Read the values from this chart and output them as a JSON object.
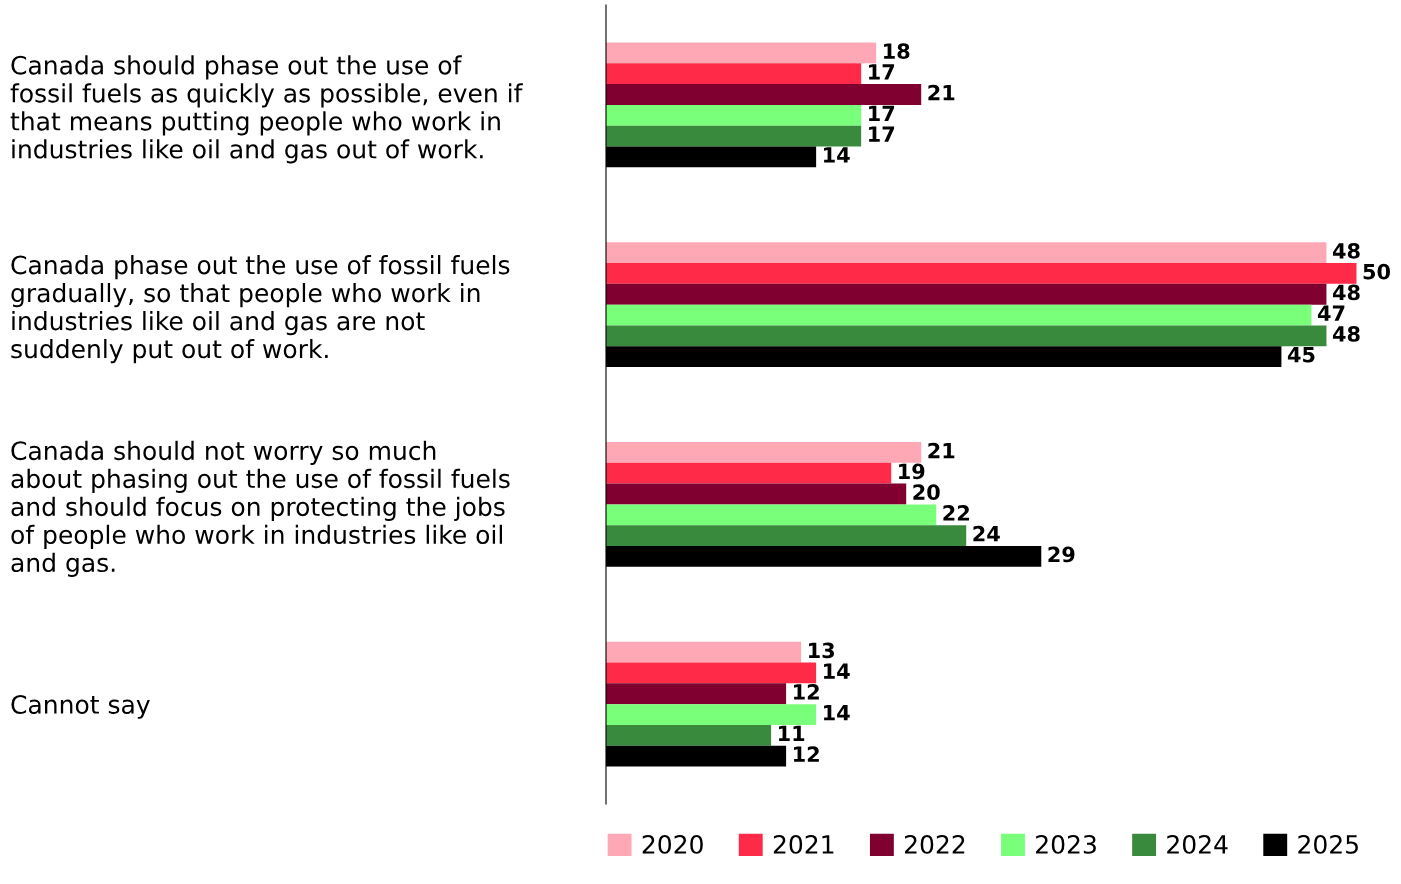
{
  "chart_data": {
    "type": "bar",
    "orientation": "horizontal",
    "data_labels": true,
    "legend": "bottom",
    "grid": false,
    "tick_labels": "y",
    "categories": [
      "Canada should phase out the use of\nfossil fuels as quickly as possible, even if\nthat means putting people who work in\nindustries like oil and gas out of work.",
      "Canada phase out the use of fossil fuels\ngradually, so that people who work in\nindustries like oil and gas are not\nsuddenly put out of work.",
      "Canada should not worry so much\nabout phasing out the use of fossil fuels\nand should focus on protecting the jobs\nof people who work in industries like oil\nand gas.",
      "Cannot say"
    ],
    "series": [
      {
        "name": "2020",
        "color": "#ffa8b5",
        "values": [
          18,
          48,
          21,
          13
        ]
      },
      {
        "name": "2021",
        "color": "#ff2a47",
        "values": [
          17,
          50,
          19,
          14
        ]
      },
      {
        "name": "2022",
        "color": "#800030",
        "values": [
          21,
          48,
          20,
          12
        ]
      },
      {
        "name": "2023",
        "color": "#7aff7a",
        "values": [
          17,
          47,
          22,
          14
        ]
      },
      {
        "name": "2024",
        "color": "#3a8a3e",
        "values": [
          17,
          48,
          24,
          11
        ]
      },
      {
        "name": "2025",
        "color": "#000000",
        "values": [
          14,
          45,
          29,
          12
        ]
      }
    ]
  }
}
